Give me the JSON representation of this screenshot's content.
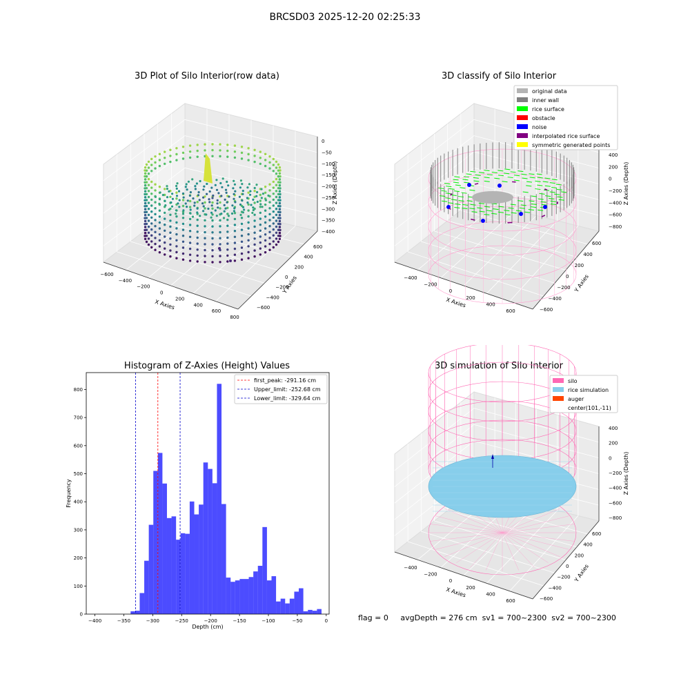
{
  "figure_title": "BRCSD03 2025-12-20 02:25:33",
  "panels": {
    "raw": {
      "title": "3D Plot of Silo Interior(row data)",
      "xlabel": "X Axies",
      "ylabel": "Y Axies",
      "zlabel": "Z Axies (Depth)",
      "xticks": [
        "−600",
        "−400",
        "−200",
        "0",
        "200",
        "400",
        "600",
        "800"
      ],
      "yticks": [
        "600",
        "400",
        "200",
        "0",
        "−200",
        "−400",
        "−600"
      ],
      "zticks": [
        "0",
        "−50",
        "−100",
        "−150",
        "−200",
        "−250",
        "−300",
        "−350",
        "−400"
      ]
    },
    "classify": {
      "title": "3D classify of Silo Interior",
      "xlabel": "X Axies",
      "ylabel": "Y Axies",
      "zlabel": "Z Axies (Depth)",
      "xticks": [
        "−400",
        "−200",
        "0",
        "200",
        "400",
        "600"
      ],
      "yticks": [
        "600",
        "400",
        "200",
        "0",
        "−200",
        "−400",
        "−600"
      ],
      "zticks": [
        "400",
        "200",
        "0",
        "−200",
        "−400",
        "−600",
        "−800"
      ],
      "legend": [
        {
          "label": "original data",
          "color": "#b4b4b4"
        },
        {
          "label": "inner wall",
          "color": "#808080"
        },
        {
          "label": "rice surface",
          "color": "#00ff00"
        },
        {
          "label": "obstacle",
          "color": "#ff0000"
        },
        {
          "label": "noise",
          "color": "#0000ff"
        },
        {
          "label": "interpolated rice surface",
          "color": "#800080"
        },
        {
          "label": "symmetric generated points",
          "color": "#ffff00"
        }
      ]
    },
    "simulation": {
      "title": "3D simulation of Silo Interior",
      "xlabel": "X Axies",
      "ylabel": "Y Axies",
      "zlabel": "Z Axies (Depth)",
      "xticks": [
        "−400",
        "−200",
        "0",
        "200",
        "400",
        "600"
      ],
      "yticks": [
        "600",
        "400",
        "200",
        "0",
        "−200",
        "−400",
        "−600"
      ],
      "zticks": [
        "400",
        "200",
        "0",
        "−200",
        "−400",
        "−600",
        "−800"
      ],
      "legend": [
        {
          "label": "silo",
          "color": "#ff69b4"
        },
        {
          "label": "rice simulation",
          "color": "#87ceeb"
        },
        {
          "label": "auger",
          "color": "#ff4500"
        },
        {
          "label": "center(101,-11)",
          "color": ""
        }
      ]
    }
  },
  "chart_data": {
    "type": "bar",
    "title": "Histogram of Z-Axies (Height) Values",
    "xlabel": "Depth (cm)",
    "ylabel": "Frequency",
    "xlim": [
      -415,
      5
    ],
    "ylim": [
      0,
      860
    ],
    "xticks": [
      -400,
      -350,
      -300,
      -250,
      -200,
      -150,
      -100,
      -50,
      0
    ],
    "yticks": [
      0,
      100,
      200,
      300,
      400,
      500,
      600,
      700,
      800
    ],
    "bar_color": "#0000ff",
    "bin_edges_start": -338.3,
    "bin_width": 7.86,
    "values": [
      10,
      12,
      75,
      190,
      318,
      510,
      574,
      465,
      342,
      348,
      265,
      288,
      286,
      401,
      355,
      390,
      540,
      517,
      466,
      820,
      392,
      130,
      115,
      120,
      125,
      125,
      132,
      152,
      172,
      310,
      120,
      135,
      45,
      55,
      38,
      55,
      80,
      92,
      10,
      15,
      12,
      18
    ],
    "vlines": [
      {
        "x": -291.16,
        "color": "#ff0000",
        "label": "first_peak: -291.16 cm"
      },
      {
        "x": -252.68,
        "color": "#0000cc",
        "label": "Upper_limit: -252.68 cm"
      },
      {
        "x": -329.64,
        "color": "#0000cc",
        "label": "Lower_limit: -329.64 cm"
      }
    ]
  },
  "footer": {
    "flag": "flag = 0",
    "avg_depth": "avgDepth = 276 cm",
    "sv1": "sv1 = 700~2300",
    "sv2": "sv2 = 700~2300"
  }
}
